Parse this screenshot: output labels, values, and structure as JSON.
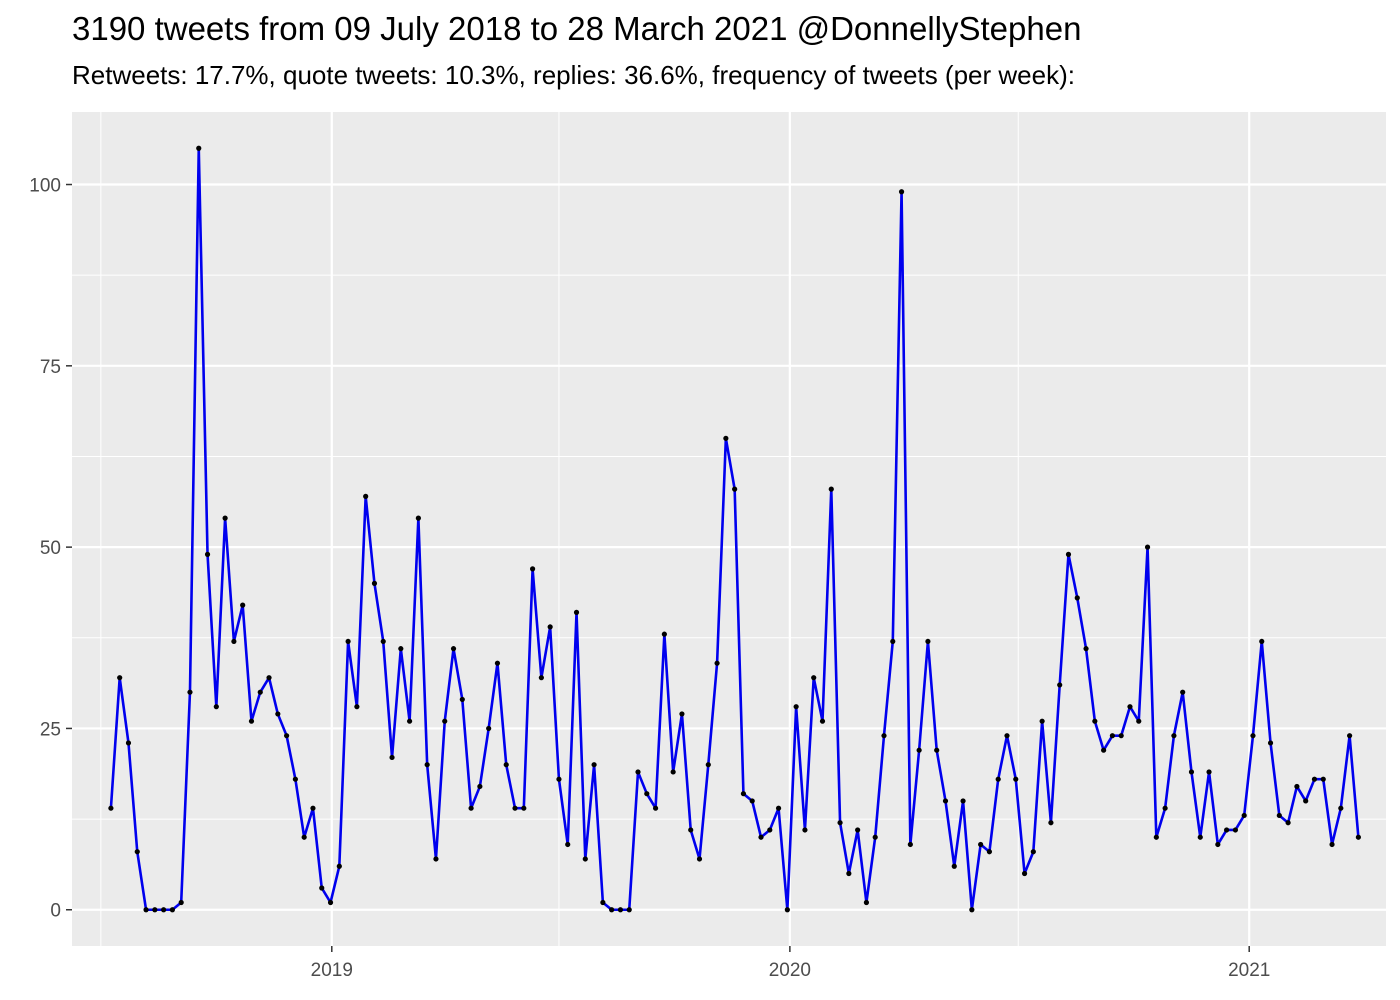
{
  "title": "3190 tweets from 09 July 2018 to 28 March 2021 @DonnellyStephen",
  "subtitle": "Retweets: 17.7%, quote tweets: 10.3%, replies: 36.6%, frequency of tweets (per week):",
  "chart_data": {
    "type": "line",
    "xlabel": "",
    "ylabel": "",
    "x_start": "2018-07-09",
    "x_step_days": 7,
    "xlim": [
      "2018-06-08",
      "2021-04-20"
    ],
    "ylim": [
      -5,
      110
    ],
    "y_ticks": [
      0,
      25,
      50,
      75,
      100
    ],
    "x_ticks": [
      {
        "date": "2019-01-01",
        "label": "2019"
      },
      {
        "date": "2020-01-01",
        "label": "2020"
      },
      {
        "date": "2021-01-01",
        "label": "2021"
      }
    ],
    "x_minor_ticks": [
      "2018-07-01",
      "2019-07-01",
      "2020-07-01"
    ],
    "grid": true,
    "colors": {
      "panel": "#ebebeb",
      "grid": "#ffffff",
      "line": "#0000ee",
      "point": "#000000",
      "tick_text": "#4d4d4d",
      "tick_mark": "#333333"
    },
    "series": [
      {
        "values": [
          14,
          32,
          23,
          8,
          0,
          0,
          0,
          0,
          1,
          30,
          105,
          49,
          28,
          54,
          37,
          42,
          26,
          30,
          32,
          27,
          24,
          18,
          10,
          14,
          3,
          1,
          6,
          37,
          28,
          57,
          45,
          37,
          21,
          36,
          26,
          54,
          20,
          7,
          26,
          36,
          29,
          14,
          17,
          25,
          34,
          20,
          14,
          14,
          47,
          32,
          39,
          18,
          9,
          41,
          7,
          20,
          1,
          0,
          0,
          0,
          19,
          16,
          14,
          38,
          19,
          27,
          11,
          7,
          20,
          34,
          65,
          58,
          16,
          15,
          10,
          11,
          14,
          0,
          28,
          11,
          32,
          26,
          58,
          12,
          5,
          11,
          1,
          10,
          24,
          37,
          99,
          9,
          22,
          37,
          22,
          15,
          6,
          15,
          0,
          9,
          8,
          18,
          24,
          18,
          5,
          8,
          26,
          12,
          31,
          49,
          43,
          36,
          26,
          22,
          24,
          24,
          28,
          26,
          50,
          10,
          14,
          24,
          30,
          19,
          10,
          19,
          9,
          11,
          11,
          13,
          24,
          37,
          23,
          13,
          12,
          17,
          15,
          18,
          18,
          9,
          14,
          24,
          10
        ]
      }
    ]
  }
}
